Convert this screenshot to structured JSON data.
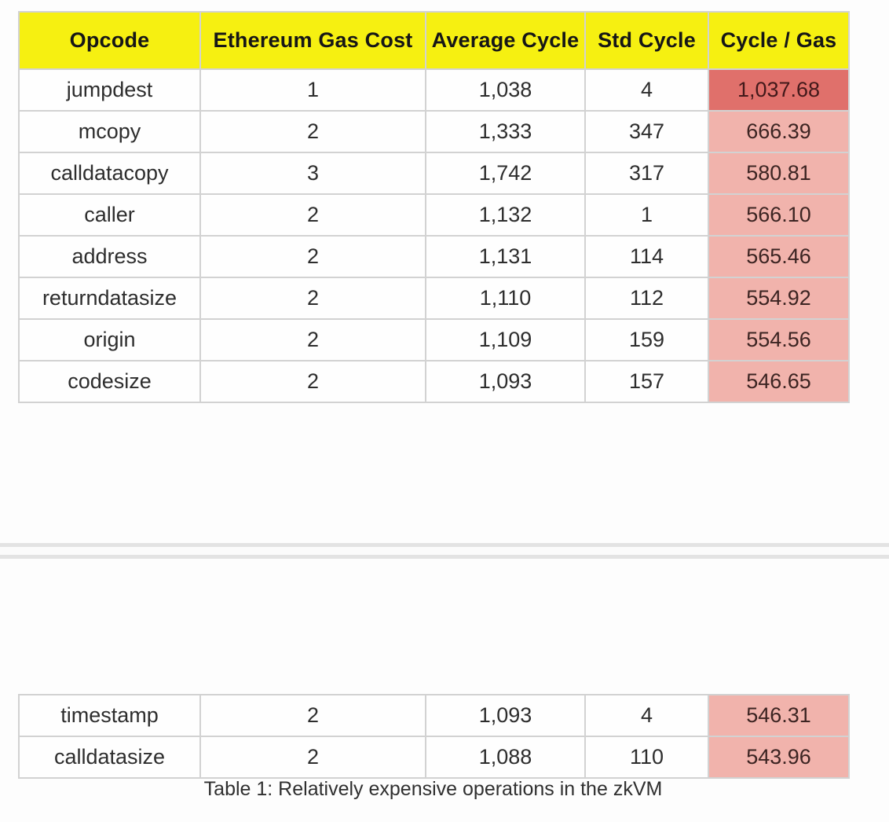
{
  "document": {
    "caption": "Table 1: Relatively expensive operations in the zkVM"
  },
  "table": {
    "columns": [
      {
        "key": "opcode",
        "label": "Opcode"
      },
      {
        "key": "gas-cost",
        "label": "Ethereum Gas Cost"
      },
      {
        "key": "avg-cycle",
        "label": "Average Cycle"
      },
      {
        "key": "std-cycle",
        "label": "Std Cycle"
      },
      {
        "key": "cycle-per-gas",
        "label": "Cycle / Gas"
      }
    ],
    "part1_rows": [
      [
        "jumpdest",
        "1",
        "1,038",
        "4",
        "1,037.68"
      ],
      [
        "mcopy",
        "2",
        "1,333",
        "347",
        "666.39"
      ],
      [
        "calldatacopy",
        "3",
        "1,742",
        "317",
        "580.81"
      ],
      [
        "caller",
        "2",
        "1,132",
        "1",
        "566.10"
      ],
      [
        "address",
        "2",
        "1,131",
        "114",
        "565.46"
      ],
      [
        "returndatasize",
        "2",
        "1,110",
        "112",
        "554.92"
      ],
      [
        "origin",
        "2",
        "1,109",
        "159",
        "554.56"
      ],
      [
        "codesize",
        "2",
        "1,093",
        "157",
        "546.65"
      ]
    ],
    "part2_rows": [
      [
        "timestamp",
        "2",
        "1,093",
        "4",
        "546.31"
      ],
      [
        "calldatasize",
        "2",
        "1,088",
        "110",
        "543.96"
      ]
    ],
    "highlight_column_index": 4,
    "strong_highlight": {
      "part": "part1",
      "row_index": 0
    },
    "colors": {
      "header_bg": "#f6f011",
      "header_text": "#161616",
      "cell_text": "#2d2d2d",
      "border": "#d2d2d2",
      "highlight_strong_bg": "#e0706b",
      "highlight_light_bg": "#f1b3ac",
      "highlight_text": "#3c2422"
    }
  }
}
